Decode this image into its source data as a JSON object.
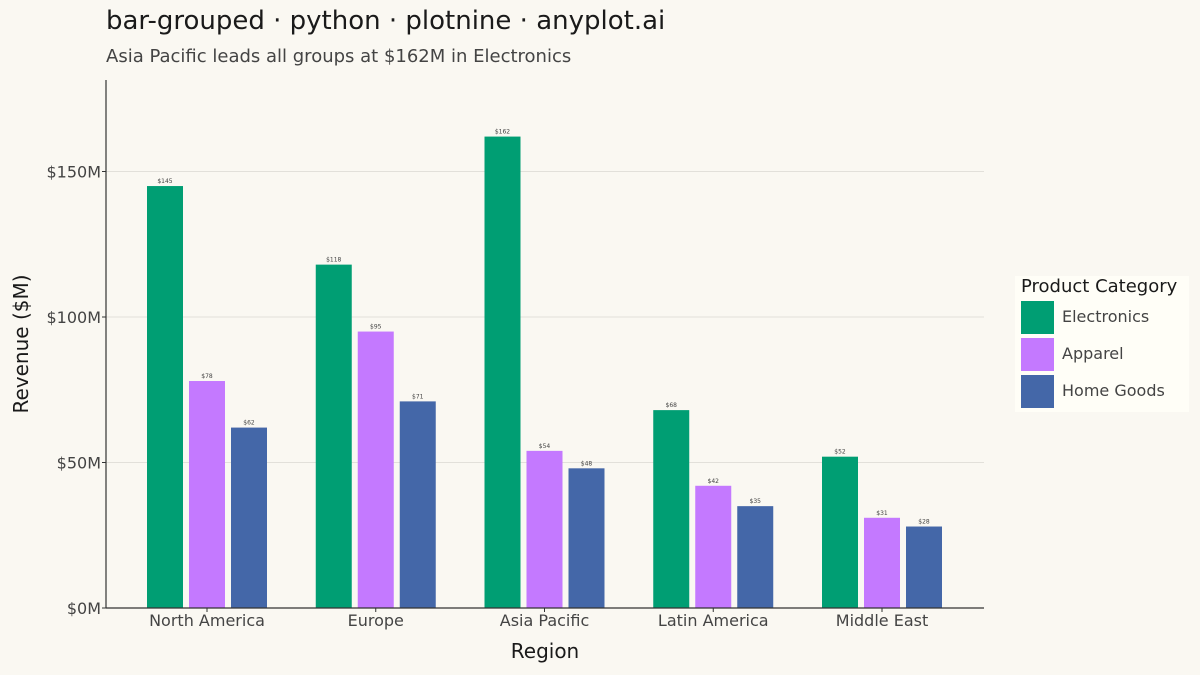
{
  "header": {
    "title": "bar-grouped · python · plotnine · anyplot.ai",
    "subtitle": "Asia Pacific leads all groups at $162M in Electronics"
  },
  "chart_data": {
    "type": "bar",
    "title": "bar-grouped · python · plotnine · anyplot.ai",
    "subtitle": "Asia Pacific leads all groups at $162M in Electronics",
    "xlabel": "Region",
    "ylabel": "Revenue ($M)",
    "ylim": [
      0,
      180
    ],
    "yticks": [
      0,
      50,
      100,
      150
    ],
    "ytick_labels": [
      "$0M",
      "$50M",
      "$100M",
      "$150M"
    ],
    "grid": true,
    "legend_title": "Product Category",
    "legend_position": "right",
    "categories": [
      "North America",
      "Europe",
      "Asia Pacific",
      "Latin America",
      "Middle East"
    ],
    "series": [
      {
        "name": "Electronics",
        "color": "#009E73",
        "values": [
          145,
          118,
          162,
          68,
          52
        ],
        "labels": [
          "$145",
          "$118",
          "$162",
          "$68",
          "$52"
        ]
      },
      {
        "name": "Apparel",
        "color": "#C479FF",
        "values": [
          78,
          95,
          54,
          42,
          31
        ],
        "labels": [
          "$78",
          "$95",
          "$54",
          "$42",
          "$31"
        ]
      },
      {
        "name": "Home Goods",
        "color": "#4467A8",
        "values": [
          62,
          71,
          48,
          35,
          28
        ],
        "labels": [
          "$62",
          "$71",
          "$48",
          "$35",
          "$28"
        ]
      }
    ]
  }
}
